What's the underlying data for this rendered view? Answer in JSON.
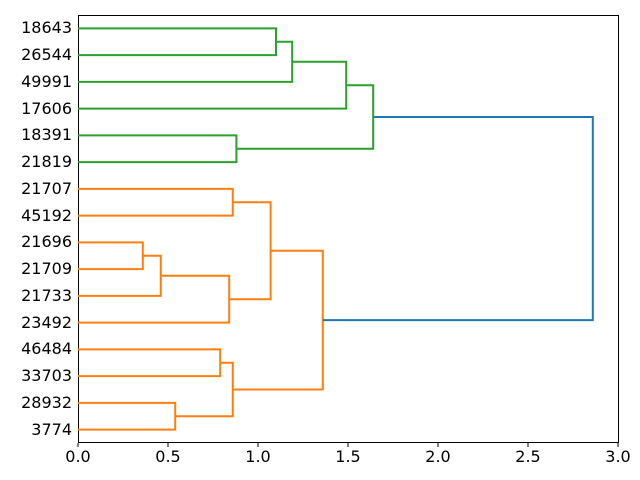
{
  "figure": {
    "background": "#ffffff",
    "spine_color": "#000000",
    "text_color": "#000000"
  },
  "chart_data": {
    "type": "dendrogram",
    "orientation": "left",
    "title": "",
    "xlabel": "",
    "ylabel": "",
    "grid": false,
    "legend": null,
    "xlim": [
      0.0,
      3.0
    ],
    "xticks": [
      "0.0",
      "0.5",
      "1.0",
      "1.5",
      "2.0",
      "2.5",
      "3.0"
    ],
    "leaves": [
      "18643",
      "26544",
      "49991",
      "17606",
      "18391",
      "21819",
      "21707",
      "45192",
      "21696",
      "21709",
      "21733",
      "23492",
      "46484",
      "33703",
      "28932",
      "3774"
    ],
    "colors": {
      "green": "#2ca02c",
      "orange": "#ff7f0e",
      "blue": "#1f77b4"
    },
    "line_width": 2,
    "merges": [
      {
        "id": "m1",
        "children": [
          "18643",
          "26544"
        ],
        "height": 1.1,
        "color": "green"
      },
      {
        "id": "m2",
        "children": [
          "m1",
          "49991"
        ],
        "height": 1.19,
        "color": "green"
      },
      {
        "id": "m3",
        "children": [
          "m2",
          "17606"
        ],
        "height": 1.49,
        "color": "green"
      },
      {
        "id": "m4",
        "children": [
          "18391",
          "21819"
        ],
        "height": 0.88,
        "color": "green"
      },
      {
        "id": "m5",
        "children": [
          "m3",
          "m4"
        ],
        "height": 1.64,
        "color": "green"
      },
      {
        "id": "m6",
        "children": [
          "21707",
          "45192"
        ],
        "height": 0.86,
        "color": "orange"
      },
      {
        "id": "m7",
        "children": [
          "21696",
          "21709"
        ],
        "height": 0.36,
        "color": "orange"
      },
      {
        "id": "m8",
        "children": [
          "m7",
          "21733"
        ],
        "height": 0.46,
        "color": "orange"
      },
      {
        "id": "m9",
        "children": [
          "m8",
          "23492"
        ],
        "height": 0.84,
        "color": "orange"
      },
      {
        "id": "m10",
        "children": [
          "m6",
          "m9"
        ],
        "height": 1.07,
        "color": "orange"
      },
      {
        "id": "m11",
        "children": [
          "46484",
          "33703"
        ],
        "height": 0.79,
        "color": "orange"
      },
      {
        "id": "m12",
        "children": [
          "28932",
          "3774"
        ],
        "height": 0.54,
        "color": "orange"
      },
      {
        "id": "m13",
        "children": [
          "m11",
          "m12"
        ],
        "height": 0.86,
        "color": "orange"
      },
      {
        "id": "m14",
        "children": [
          "m10",
          "m13"
        ],
        "height": 1.36,
        "color": "orange"
      },
      {
        "id": "m15",
        "children": [
          "m5",
          "m14"
        ],
        "height": 2.86,
        "color": "blue"
      }
    ]
  }
}
